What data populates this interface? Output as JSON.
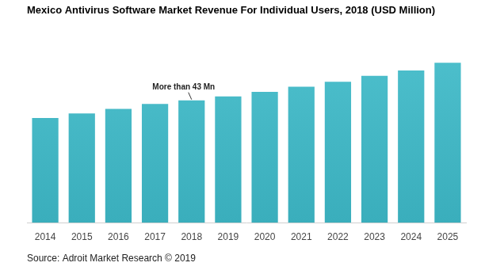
{
  "chart_data": {
    "type": "bar",
    "title": "Mexico Antivirus Software Market Revenue For Individual Users, 2018 (USD Million)",
    "source": "Source: Adroit Market Research © 2019",
    "categories": [
      "2014",
      "2015",
      "2016",
      "2017",
      "2018",
      "2019",
      "2020",
      "2021",
      "2022",
      "2023",
      "2024",
      "2025"
    ],
    "values": [
      36.8,
      38.4,
      40.0,
      41.7,
      43.0,
      44.4,
      46.0,
      47.8,
      49.5,
      51.6,
      53.5,
      56.2
    ],
    "color": "#4dbfcc",
    "ylim": [
      0,
      60
    ],
    "grid": false,
    "tick_labels": "x",
    "annotations": [
      {
        "text": "More than 43 Mn",
        "category": "2018"
      }
    ]
  }
}
